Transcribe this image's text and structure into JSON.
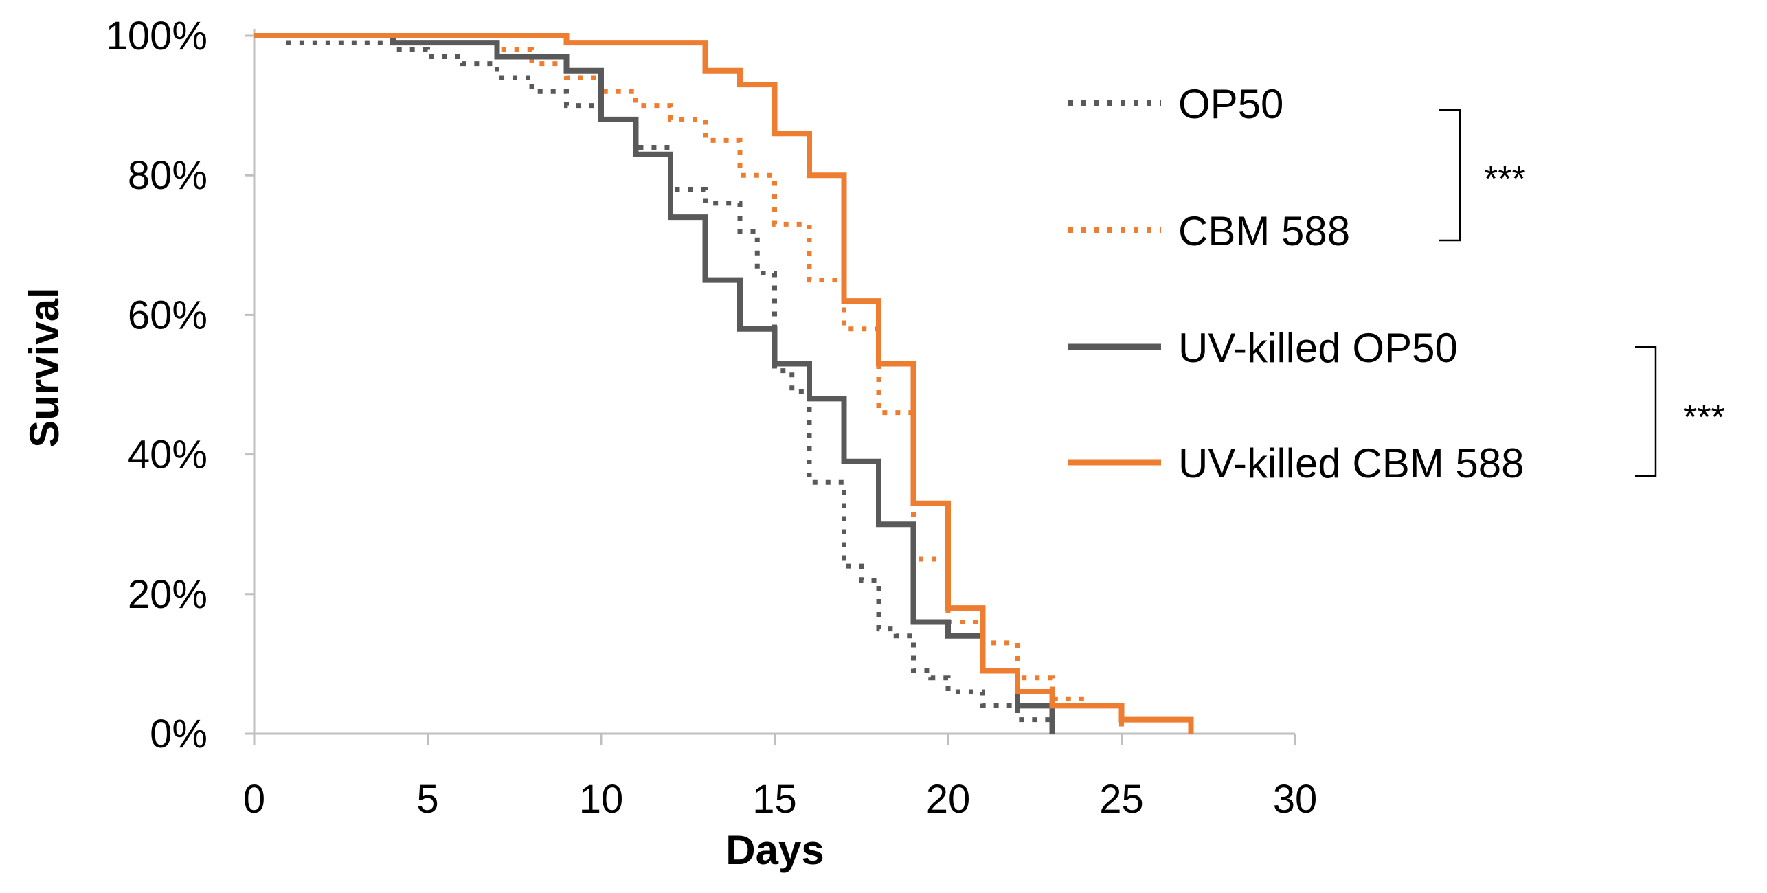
{
  "chart_data": {
    "type": "line",
    "xlabel": "Days",
    "ylabel": "Survival",
    "xlim": [
      0,
      30
    ],
    "ylim": [
      0,
      100
    ],
    "xticks": [
      0,
      5,
      10,
      15,
      20,
      25,
      30
    ],
    "yticks": [
      0,
      20,
      40,
      60,
      80,
      100
    ],
    "xtick_labels": [
      "0",
      "5",
      "10",
      "15",
      "20",
      "25",
      "30"
    ],
    "ytick_labels": [
      "0%",
      "20%",
      "40%",
      "60%",
      "80%",
      "100%"
    ],
    "grid": false,
    "legend_position": "right",
    "series": [
      {
        "name": "OP50",
        "color": "#595959",
        "dash": "dotted",
        "step_points": [
          [
            0,
            100
          ],
          [
            1,
            99
          ],
          [
            4,
            98
          ],
          [
            5,
            97
          ],
          [
            6,
            96
          ],
          [
            7,
            94
          ],
          [
            8,
            92
          ],
          [
            9,
            90
          ],
          [
            10,
            88
          ],
          [
            11,
            84
          ],
          [
            12,
            78
          ],
          [
            13,
            76
          ],
          [
            14,
            72
          ],
          [
            14.5,
            66
          ],
          [
            15,
            52
          ],
          [
            15.5,
            49
          ],
          [
            16,
            36
          ],
          [
            17,
            24
          ],
          [
            17.5,
            22
          ],
          [
            18,
            15
          ],
          [
            18.5,
            14
          ],
          [
            19,
            9
          ],
          [
            19.5,
            8
          ],
          [
            20,
            6
          ],
          [
            21,
            4
          ],
          [
            22,
            2
          ],
          [
            23,
            0
          ]
        ]
      },
      {
        "name": "CBM 588",
        "color": "#ED7D31",
        "dash": "dotted",
        "step_points": [
          [
            0,
            100
          ],
          [
            7,
            98
          ],
          [
            8,
            96
          ],
          [
            9,
            94
          ],
          [
            10,
            92
          ],
          [
            11,
            90
          ],
          [
            12,
            88
          ],
          [
            13,
            85
          ],
          [
            14,
            80
          ],
          [
            15,
            73
          ],
          [
            16,
            65
          ],
          [
            17,
            58
          ],
          [
            18,
            46
          ],
          [
            19,
            25
          ],
          [
            20,
            16
          ],
          [
            21,
            13
          ],
          [
            22,
            8
          ],
          [
            23,
            5
          ],
          [
            24,
            4
          ],
          [
            25,
            0
          ]
        ]
      },
      {
        "name": "UV-killed OP50",
        "color": "#595959",
        "dash": "solid",
        "step_points": [
          [
            0,
            100
          ],
          [
            4,
            99
          ],
          [
            7,
            97
          ],
          [
            9,
            95
          ],
          [
            10,
            88
          ],
          [
            11,
            83
          ],
          [
            12,
            74
          ],
          [
            13,
            65
          ],
          [
            14,
            58
          ],
          [
            15,
            53
          ],
          [
            16,
            48
          ],
          [
            17,
            39
          ],
          [
            18,
            30
          ],
          [
            19,
            16
          ],
          [
            20,
            14
          ],
          [
            21,
            9
          ],
          [
            22,
            4
          ],
          [
            23,
            0
          ]
        ]
      },
      {
        "name": "UV-killed CBM 588",
        "color": "#ED7D31",
        "dash": "solid",
        "step_points": [
          [
            0,
            100
          ],
          [
            9,
            99
          ],
          [
            13,
            95
          ],
          [
            14,
            93
          ],
          [
            15,
            86
          ],
          [
            16,
            80
          ],
          [
            17,
            62
          ],
          [
            18,
            53
          ],
          [
            19,
            33
          ],
          [
            20,
            18
          ],
          [
            21,
            9
          ],
          [
            22,
            6
          ],
          [
            23,
            4
          ],
          [
            25,
            2
          ],
          [
            27,
            0
          ]
        ]
      }
    ],
    "annotations": [
      {
        "text": "***",
        "between": [
          "OP50",
          "CBM 588"
        ]
      },
      {
        "text": "***",
        "between": [
          "UV-killed OP50",
          "UV-killed CBM 588"
        ]
      }
    ]
  }
}
